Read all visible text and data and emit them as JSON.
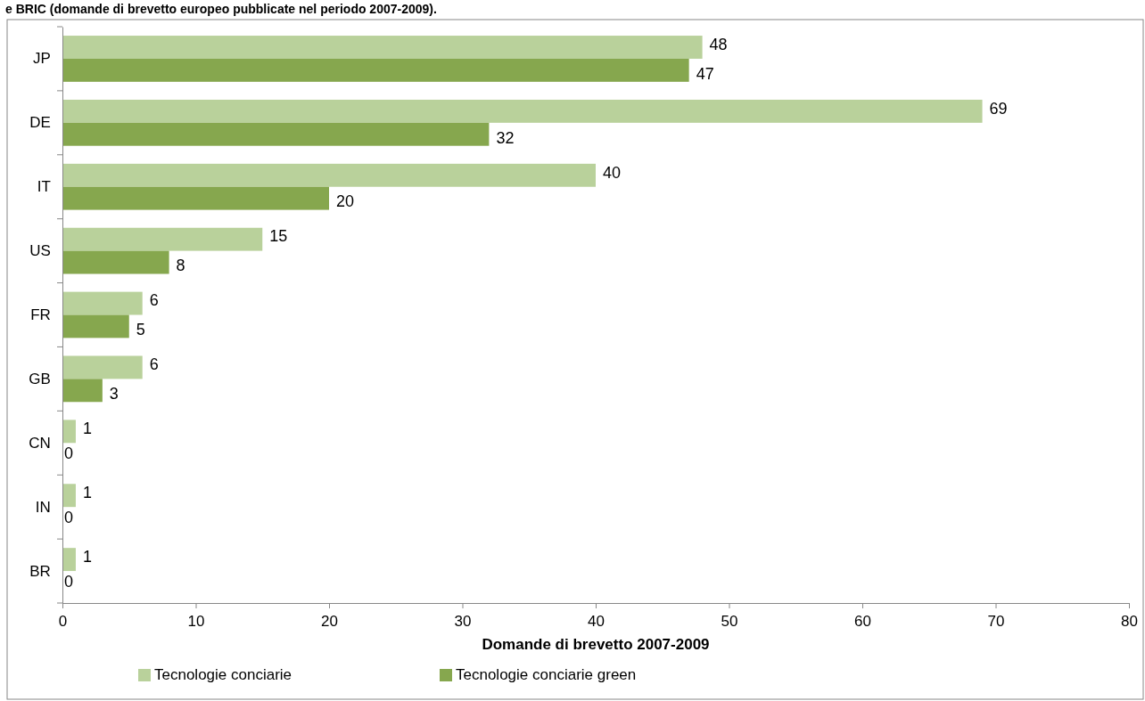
{
  "chart_data": {
    "type": "bar",
    "orientation": "horizontal",
    "title": "e BRIC (domande di brevetto europeo pubblicate nel periodo 2007-2009).",
    "xlabel": "Domande di brevetto 2007-2009",
    "categories": [
      "JP",
      "DE",
      "IT",
      "US",
      "FR",
      "GB",
      "CN",
      "IN",
      "BR"
    ],
    "series": [
      {
        "name": "Tecnologie conciarie",
        "color": "#b9d19b",
        "values": [
          48,
          69,
          40,
          15,
          6,
          6,
          1,
          1,
          1
        ]
      },
      {
        "name": "Tecnologie conciarie green",
        "color": "#86a74e",
        "values": [
          47,
          32,
          20,
          8,
          5,
          3,
          0,
          0,
          0
        ]
      }
    ],
    "xlim": [
      0,
      80
    ],
    "xticks": [
      0,
      10,
      20,
      30,
      40,
      50,
      60,
      70,
      80
    ],
    "data_labels": true,
    "grid": false,
    "legend": "bottom"
  }
}
